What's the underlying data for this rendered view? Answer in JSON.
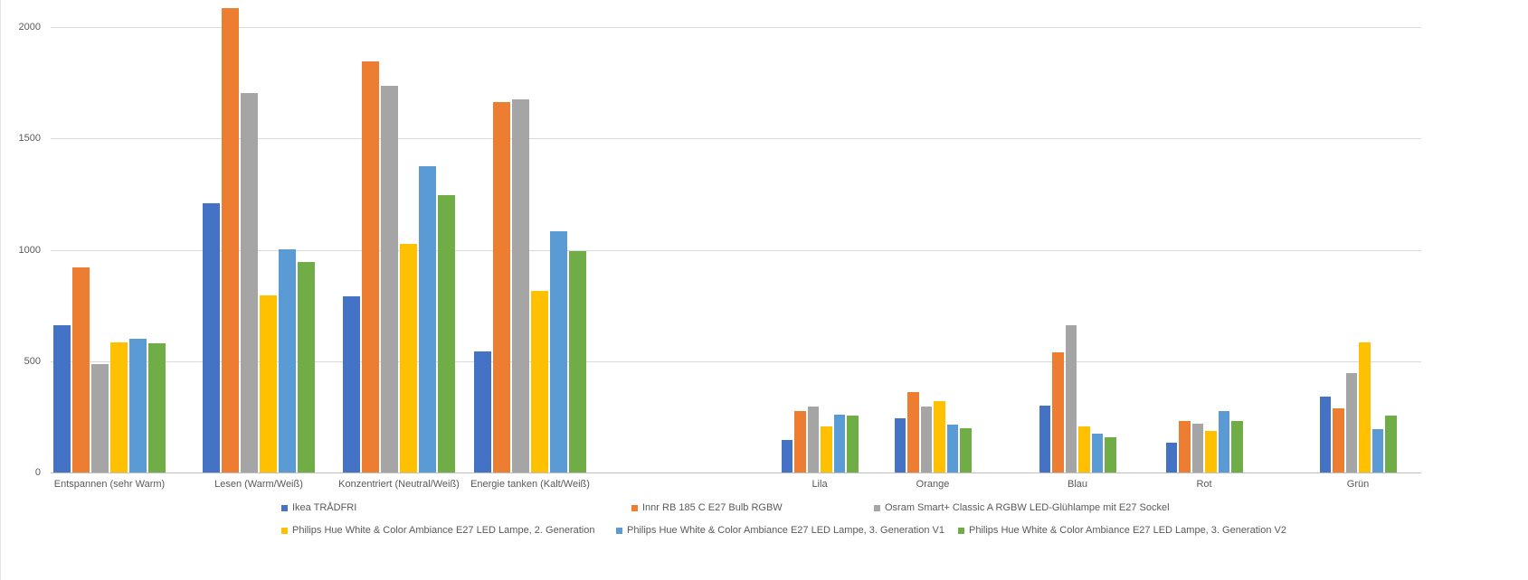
{
  "chart_data": {
    "type": "bar",
    "title": "",
    "xlabel": "",
    "ylabel": "",
    "categories": [
      "Entspannen (sehr Warm)",
      "Lesen (Warm/Weiß)",
      "Konzentriert (Neutral/Weiß)",
      "Energie tanken (Kalt/Weiß)",
      "Lila",
      "Orange",
      "Blau",
      "Rot",
      "Grün"
    ],
    "series": [
      {
        "name": "Ikea TRÅDFRI",
        "color": "#4472C4",
        "values": [
          660,
          1210,
          790,
          545,
          145,
          245,
          300,
          135,
          340
        ]
      },
      {
        "name": "Innr RB 185 C E27 Bulb RGBW",
        "color": "#ED7D31",
        "values": [
          920,
          2085,
          1845,
          1665,
          275,
          360,
          540,
          230,
          290
        ]
      },
      {
        "name": "Osram Smart+ Classic A RGBW LED-Glühlampe mit E27 Sockel",
        "color": "#A5A5A5",
        "values": [
          485,
          1705,
          1735,
          1675,
          295,
          295,
          660,
          220,
          445
        ]
      },
      {
        "name": "Philips Hue White & Color Ambiance E27 LED Lampe, 2. Generation",
        "color": "#FFC000",
        "values": [
          585,
          795,
          1025,
          815,
          205,
          320,
          205,
          185,
          585
        ]
      },
      {
        "name": "Philips Hue White & Color Ambiance E27 LED Lampe, 3. Generation V1",
        "color": "#5B9BD5",
        "values": [
          600,
          1000,
          1375,
          1085,
          260,
          215,
          175,
          275,
          195
        ]
      },
      {
        "name": "Philips Hue White & Color Ambiance E27 LED Lampe, 3. Generation V2",
        "color": "#70AD47",
        "values": [
          580,
          945,
          1245,
          995,
          255,
          200,
          160,
          230,
          255
        ]
      }
    ],
    "y_ticks": [
      0,
      500,
      1000,
      1500,
      2000
    ],
    "ylim": [
      0,
      2150
    ],
    "grid": "horizontal",
    "legend_position": "bottom",
    "legend_rows": 2,
    "axis_text_color": "#595959",
    "gridline_color": "#D9D9D9",
    "background_color": "#FFFFFF"
  }
}
